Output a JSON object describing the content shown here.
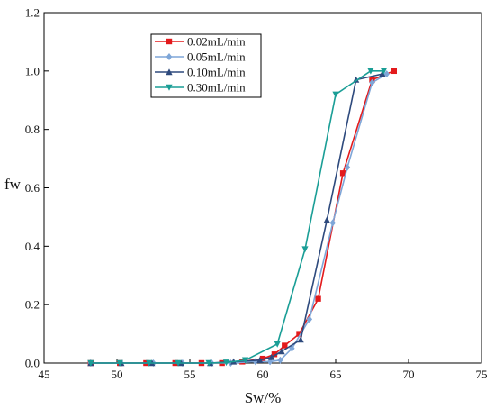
{
  "chart_data": {
    "type": "line",
    "xlabel": "Sw/%",
    "ylabel": "fw",
    "xlim": [
      45,
      75
    ],
    "ylim": [
      0,
      1.2
    ],
    "xticks": [
      45,
      50,
      55,
      60,
      65,
      70,
      75
    ],
    "yticks": [
      0.0,
      0.2,
      0.4,
      0.6,
      0.8,
      1.0,
      1.2
    ],
    "grid": false,
    "legend": "top-left",
    "series": [
      {
        "name": "0.02mL/min",
        "color": "#e31a1c",
        "marker": "square",
        "x": [
          48.2,
          50.2,
          52.0,
          54.0,
          55.8,
          57.2,
          58.6,
          60.0,
          60.8,
          61.5,
          62.5,
          63.8,
          65.5,
          67.5,
          69.0
        ],
        "y": [
          0.0,
          0.0,
          0.0,
          0.0,
          0.0,
          0.0,
          0.005,
          0.015,
          0.03,
          0.06,
          0.1,
          0.22,
          0.65,
          0.97,
          1.0
        ]
      },
      {
        "name": "0.05mL/min",
        "color": "#7ea6d8",
        "marker": "diamond",
        "x": [
          48.2,
          50.3,
          52.5,
          54.5,
          56.5,
          57.8,
          59.5,
          60.5,
          61.2,
          62.0,
          63.2,
          64.8,
          65.8,
          67.5,
          68.5
        ],
        "y": [
          0.0,
          0.0,
          0.0,
          0.0,
          0.0,
          0.0,
          0.005,
          0.005,
          0.01,
          0.05,
          0.15,
          0.48,
          0.67,
          0.96,
          0.99
        ]
      },
      {
        "name": "0.10mL/min",
        "color": "#2e4a7d",
        "marker": "triangle",
        "x": [
          48.2,
          50.3,
          52.4,
          54.4,
          56.4,
          58.0,
          59.8,
          60.6,
          61.3,
          62.6,
          64.4,
          66.4,
          68.2
        ],
        "y": [
          0.0,
          0.0,
          0.0,
          0.0,
          0.0,
          0.005,
          0.01,
          0.02,
          0.04,
          0.08,
          0.49,
          0.97,
          0.99
        ]
      },
      {
        "name": "0.30mL/min",
        "color": "#1a9e96",
        "marker": "triangle-down",
        "x": [
          48.2,
          50.2,
          52.2,
          54.2,
          56.3,
          57.5,
          58.8,
          61.0,
          62.9,
          65.0,
          67.4,
          68.3
        ],
        "y": [
          0.0,
          0.0,
          0.0,
          0.0,
          0.0,
          0.002,
          0.01,
          0.065,
          0.39,
          0.92,
          1.0,
          1.0
        ]
      }
    ]
  }
}
